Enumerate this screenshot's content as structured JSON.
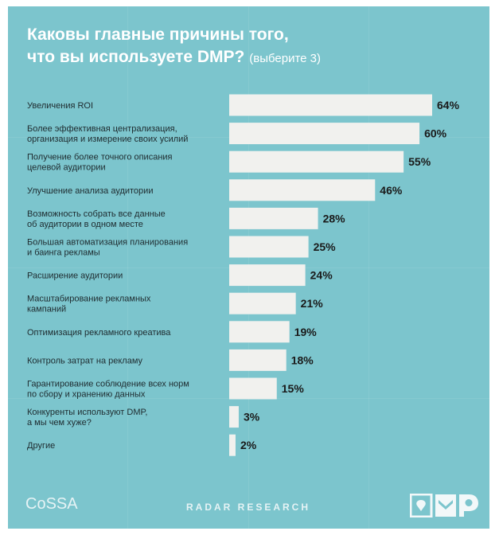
{
  "chart_data": {
    "type": "bar",
    "orientation": "horizontal",
    "title": "Каковы главные причины того, что вы используете DMP?",
    "title_lines": [
      "Каковы главные причины того,",
      "что вы используете DMP?"
    ],
    "subtitle": "(выберите 3)",
    "xlim": [
      0,
      64
    ],
    "grid": false,
    "legend": "none",
    "categories": [
      [
        "Увеличения ROI"
      ],
      [
        "Более эффективная централизация,",
        "организация и измерение своих усилий"
      ],
      [
        "Получение более точного описания",
        "целевой аудитории"
      ],
      [
        "Улучшение анализа аудитории"
      ],
      [
        "Возможность собрать все данные",
        "об аудитории в одном месте"
      ],
      [
        "Большая автоматизация планирования",
        "и баинга рекламы"
      ],
      [
        "Расширение аудитории"
      ],
      [
        "Масштабирование рекламных",
        "кампаний"
      ],
      [
        "Оптимизация рекламного креатива"
      ],
      [
        "Контроль затрат на рекламу"
      ],
      [
        "Гарантирование соблюдение всех норм",
        "по сбору и хранению данных"
      ],
      [
        "Конкуренты используют DMP,",
        "а мы чем хуже?"
      ],
      [
        "Другие"
      ]
    ],
    "values": [
      64,
      60,
      55,
      46,
      28,
      25,
      24,
      21,
      19,
      18,
      15,
      3,
      2
    ],
    "value_labels": [
      "64%",
      "60%",
      "55%",
      "46%",
      "28%",
      "25%",
      "24%",
      "21%",
      "19%",
      "18%",
      "15%",
      "3%",
      "2%"
    ],
    "bar_color": "#f1f1ee",
    "background_color": "#7cc5cd"
  },
  "footer": {
    "brand": "CoSSA",
    "research": "RADAR RESEARCH",
    "logo_text": "DMP"
  }
}
